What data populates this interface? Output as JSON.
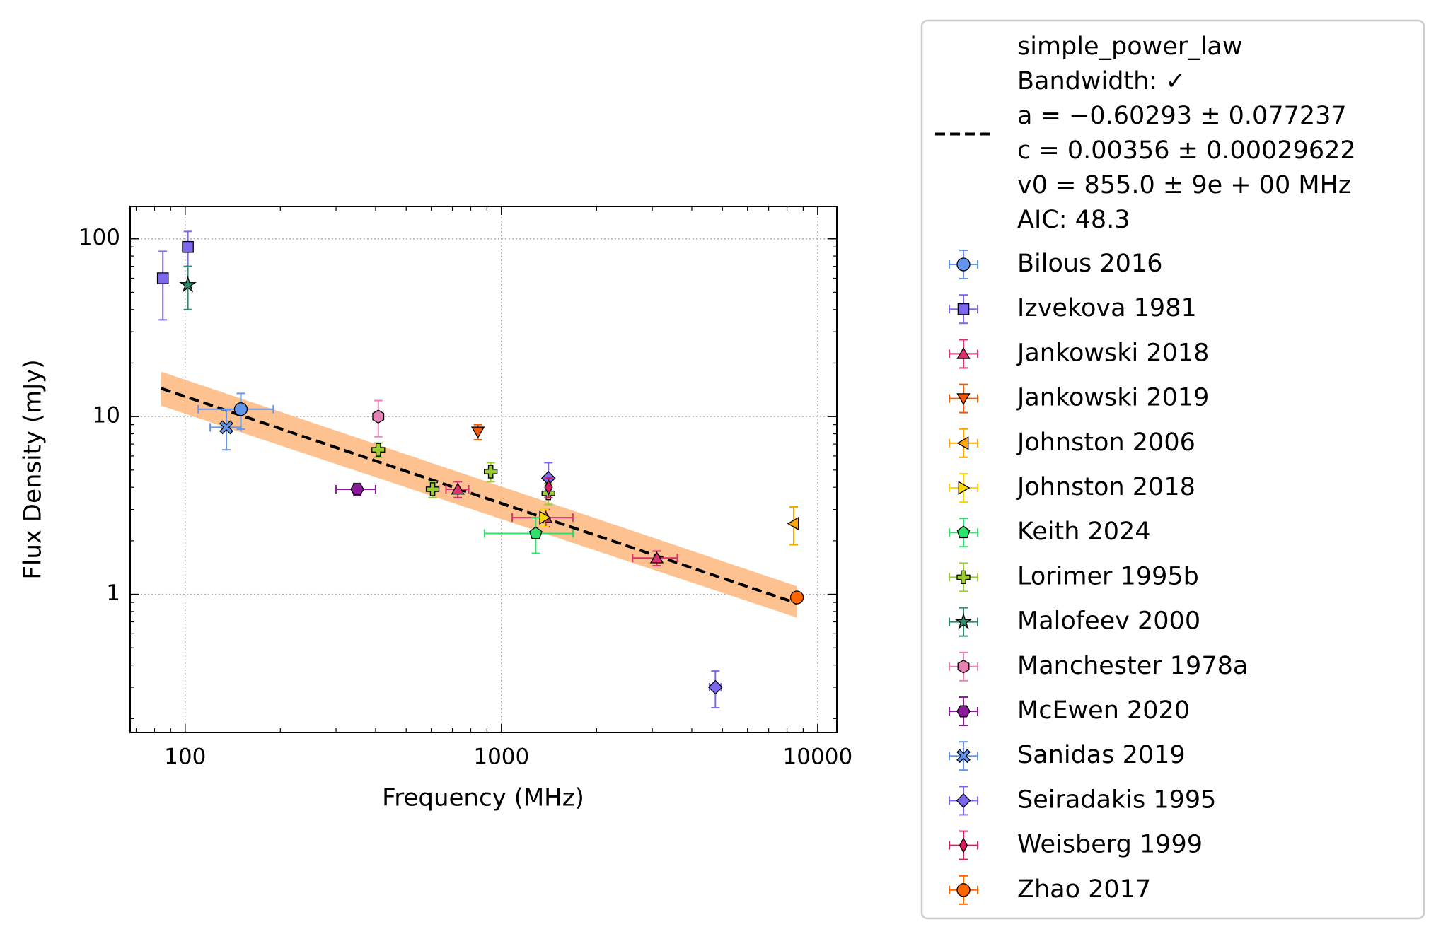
{
  "chart_data": {
    "type": "scatter",
    "xlabel": "Frequency (MHz)",
    "ylabel": "Flux Density (mJy)",
    "xscale": "log",
    "yscale": "log",
    "xlim": [
      67,
      11500
    ],
    "ylim": [
      0.167,
      152
    ],
    "xticks": [
      100,
      1000,
      10000
    ],
    "yticks": [
      1,
      10,
      100
    ],
    "grid": true,
    "legend_loc": "outside right",
    "band": {
      "color": "#fdbb84",
      "x": [
        84,
        8600
      ],
      "lower": [
        11.5,
        0.74
      ],
      "upper": [
        17.9,
        1.11
      ]
    },
    "fit": {
      "label_lines": [
        "simple_power_law",
        "Bandwidth: ✓",
        "a = −0.60293 ± 0.077237",
        "c = 0.00356 ± 0.00029622",
        "v0 = 855.0 ± 9e + 00 MHz",
        "AIC: 48.3"
      ],
      "color": "#000000",
      "x": [
        84,
        8600
      ],
      "values": [
        14.4,
        0.89
      ]
    },
    "series": [
      {
        "name": "Bilous 2016",
        "color": "#6495ed",
        "marker": "o",
        "x": [
          150
        ],
        "values": [
          11
        ],
        "xerr": [
          40
        ],
        "yerr": [
          2.5
        ]
      },
      {
        "name": "Izvekova 1981",
        "color": "#7b68ee",
        "marker": "s",
        "x": [
          85,
          102
        ],
        "values": [
          60,
          90
        ],
        "xerr": [
          0,
          0
        ],
        "yerr": [
          25,
          20
        ]
      },
      {
        "name": "Jankowski 2018",
        "color": "#dc2f6e",
        "marker": "^",
        "x": [
          728,
          1382,
          3100
        ],
        "values": [
          3.9,
          2.7,
          1.6
        ],
        "xerr": [
          60,
          300,
          500
        ],
        "yerr": [
          0.4,
          0.3,
          0.15
        ]
      },
      {
        "name": "Jankowski 2019",
        "color": "#f0580a",
        "marker": "v",
        "x": [
          843
        ],
        "values": [
          8.2
        ],
        "xerr": [
          0
        ],
        "yerr": [
          0.8
        ]
      },
      {
        "name": "Johnston 2006",
        "color": "#ffa500",
        "marker": "<",
        "x": [
          8400
        ],
        "values": [
          2.5
        ],
        "xerr": [
          0
        ],
        "yerr": [
          0.6
        ]
      },
      {
        "name": "Johnston 2018",
        "color": "#ffd700",
        "marker": ">",
        "x": [
          1369
        ],
        "values": [
          2.7
        ],
        "xerr": [
          0
        ],
        "yerr": [
          0.3
        ]
      },
      {
        "name": "Keith 2024",
        "color": "#2ee06e",
        "marker": "p",
        "x": [
          1284
        ],
        "values": [
          2.2
        ],
        "xerr": [
          400
        ],
        "yerr": [
          0.5
        ]
      },
      {
        "name": "Lorimer 1995b",
        "color": "#9acd32",
        "marker": "P",
        "x": [
          408,
          606,
          925,
          1408
        ],
        "values": [
          6.5,
          3.9,
          4.9,
          3.7
        ],
        "xerr": [
          0,
          0,
          0,
          0
        ],
        "yerr": [
          0.6,
          0.4,
          0.6,
          0.5
        ]
      },
      {
        "name": "Malofeev 2000",
        "color": "#2e8b6e",
        "marker": "*",
        "x": [
          102
        ],
        "values": [
          55
        ],
        "xerr": [
          0
        ],
        "yerr": [
          15
        ]
      },
      {
        "name": "Manchester 1978a",
        "color": "#e782b4",
        "marker": "h",
        "x": [
          408
        ],
        "values": [
          10
        ],
        "xerr": [
          0
        ],
        "yerr": [
          2.3
        ]
      },
      {
        "name": "McEwen 2020",
        "color": "#8b1a9b",
        "marker": "H",
        "x": [
          350
        ],
        "values": [
          3.9
        ],
        "xerr": [
          50
        ],
        "yerr": [
          0.3
        ]
      },
      {
        "name": "Sanidas 2019",
        "color": "#6495ed",
        "marker": "X",
        "x": [
          135
        ],
        "values": [
          8.7
        ],
        "xerr": [
          15
        ],
        "yerr": [
          2.2
        ]
      },
      {
        "name": "Seiradakis 1995",
        "color": "#7b68ee",
        "marker": "D",
        "x": [
          1408,
          4750
        ],
        "values": [
          4.5,
          0.3
        ],
        "xerr": [
          0,
          200
        ],
        "yerr": [
          1,
          0.07
        ]
      },
      {
        "name": "Weisberg 1999",
        "color": "#d81b60",
        "marker": "d",
        "x": [
          1410
        ],
        "values": [
          4.0
        ],
        "xerr": [
          0
        ],
        "yerr": [
          0.5
        ]
      },
      {
        "name": "Zhao 2017",
        "color": "#ff6600",
        "marker": "o",
        "x": [
          8600
        ],
        "values": [
          0.96
        ],
        "xerr": [
          0
        ],
        "yerr": [
          0.05
        ]
      }
    ]
  }
}
